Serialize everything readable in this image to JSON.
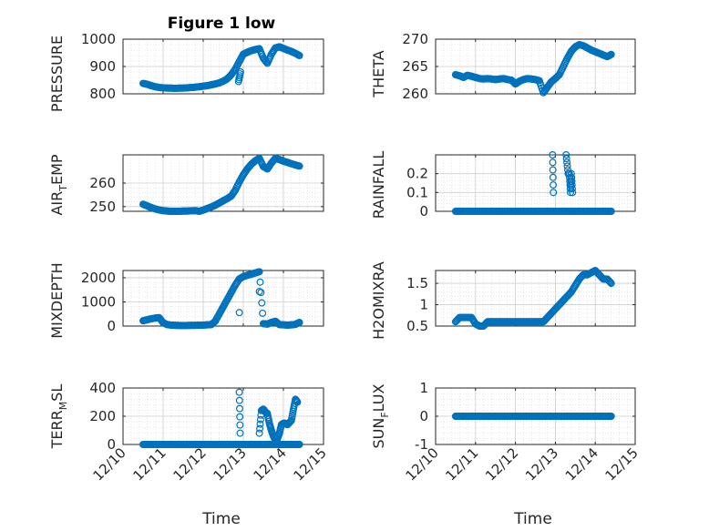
{
  "chart_data": [
    {
      "type": "scatter",
      "title": "Figure 1 low",
      "ylabel": "PRESSURE",
      "ylim": [
        800,
        1000
      ],
      "yticks": [
        800,
        900,
        1000
      ],
      "yticklabels": [
        "800",
        "900",
        "1000"
      ],
      "x": [
        10.5,
        10.6,
        10.7,
        10.8,
        10.9,
        11.0,
        11.1,
        11.2,
        11.3,
        11.4,
        11.5,
        11.6,
        11.7,
        11.8,
        11.9,
        12.0,
        12.1,
        12.2,
        12.3,
        12.4,
        12.5,
        12.6,
        12.7,
        12.8,
        12.9,
        13.0,
        13.1,
        13.2,
        13.3,
        13.4,
        13.5,
        13.6,
        13.7,
        13.8,
        13.9,
        14.0,
        14.1,
        14.2,
        14.3,
        14.4,
        12.88,
        12.93
      ],
      "y": [
        838,
        835,
        830,
        826,
        823,
        822,
        821,
        821,
        820,
        821,
        821,
        822,
        823,
        824,
        826,
        828,
        830,
        833,
        836,
        840,
        846,
        855,
        870,
        890,
        918,
        945,
        952,
        958,
        962,
        965,
        930,
        912,
        945,
        968,
        972,
        966,
        960,
        955,
        948,
        940,
        845,
        880
      ]
    },
    {
      "type": "scatter",
      "ylabel": "THETA",
      "ylim": [
        260,
        270
      ],
      "yticks": [
        260,
        265,
        270
      ],
      "yticklabels": [
        "260",
        "265",
        "270"
      ],
      "x": [
        10.5,
        10.6,
        10.7,
        10.8,
        10.9,
        11.0,
        11.1,
        11.2,
        11.3,
        11.4,
        11.5,
        11.6,
        11.7,
        11.8,
        11.9,
        12.0,
        12.1,
        12.2,
        12.3,
        12.4,
        12.5,
        12.6,
        12.7,
        12.8,
        12.9,
        13.0,
        13.1,
        13.2,
        13.3,
        13.4,
        13.5,
        13.6,
        13.7,
        13.8,
        13.9,
        14.0,
        14.1,
        14.2,
        14.3,
        14.4
      ],
      "y": [
        263.5,
        263.3,
        263.0,
        263.4,
        263.2,
        263.0,
        262.8,
        262.7,
        262.8,
        262.7,
        262.6,
        262.7,
        262.8,
        262.6,
        262.5,
        261.8,
        262.3,
        262.6,
        262.8,
        262.7,
        262.6,
        262.4,
        260.2,
        261.2,
        262.2,
        262.8,
        263.5,
        265.0,
        266.5,
        267.8,
        268.6,
        269.0,
        268.8,
        268.4,
        268.0,
        267.7,
        267.4,
        267.1,
        266.8,
        267.2
      ]
    },
    {
      "type": "scatter",
      "ylabel": "AIR_TEMP",
      "ylim": [
        248,
        272
      ],
      "yticks": [
        250,
        260
      ],
      "yticklabels": [
        "250",
        "260"
      ],
      "x": [
        10.5,
        10.6,
        10.7,
        10.8,
        10.9,
        11.0,
        11.1,
        11.2,
        11.3,
        11.4,
        11.5,
        11.6,
        11.7,
        11.8,
        11.9,
        12.0,
        12.1,
        12.2,
        12.3,
        12.4,
        12.5,
        12.6,
        12.7,
        12.8,
        12.9,
        13.0,
        13.1,
        13.2,
        13.3,
        13.4,
        13.5,
        13.6,
        13.7,
        13.8,
        13.9,
        14.0,
        14.1,
        14.2,
        14.3,
        14.4
      ],
      "y": [
        251.0,
        250.3,
        249.6,
        249.0,
        248.6,
        248.3,
        248.1,
        248.0,
        248.0,
        248.0,
        248.1,
        248.1,
        248.2,
        248.3,
        248.0,
        248.5,
        249.2,
        249.8,
        250.6,
        251.5,
        252.5,
        253.4,
        254.5,
        257.0,
        260.5,
        263.5,
        266.0,
        268.0,
        269.5,
        270.5,
        267.0,
        266.0,
        268.5,
        270.5,
        270.0,
        269.3,
        268.8,
        268.2,
        267.7,
        267.2
      ]
    },
    {
      "type": "scatter",
      "ylabel": "RAINFALL",
      "ylim": [
        0,
        0.3
      ],
      "yticks": [
        0,
        0.1,
        0.2
      ],
      "yticklabels": [
        "0",
        "0.1",
        "0.2"
      ],
      "x": [
        10.5,
        10.6,
        10.7,
        10.8,
        10.9,
        11.0,
        11.1,
        11.2,
        11.3,
        11.4,
        11.5,
        11.6,
        11.7,
        11.8,
        11.9,
        12.0,
        12.1,
        12.2,
        12.3,
        12.4,
        12.5,
        12.6,
        12.7,
        12.8,
        12.9,
        13.0,
        13.1,
        13.2,
        13.3,
        13.4,
        13.5,
        13.6,
        13.7,
        13.8,
        13.9,
        14.0,
        14.1,
        14.2,
        14.3,
        14.4,
        12.93,
        12.95,
        13.27,
        13.32,
        13.35,
        13.38,
        13.4,
        13.43
      ],
      "y": [
        0,
        0,
        0,
        0,
        0,
        0,
        0,
        0,
        0,
        0,
        0,
        0,
        0,
        0,
        0,
        0,
        0,
        0,
        0,
        0,
        0,
        0,
        0,
        0,
        0,
        0,
        0,
        0,
        0,
        0,
        0,
        0,
        0,
        0,
        0,
        0,
        0,
        0,
        0,
        0,
        0.3,
        0.1,
        0.3,
        0.2,
        0.2,
        0.1,
        0.2,
        0.1
      ]
    },
    {
      "type": "scatter",
      "ylabel": "MIXDEPTH",
      "ylim": [
        0,
        2300
      ],
      "yticks": [
        0,
        1000,
        2000
      ],
      "yticklabels": [
        "0",
        "1000",
        "2000"
      ],
      "x": [
        10.5,
        10.6,
        10.7,
        10.8,
        10.9,
        11.0,
        11.1,
        11.2,
        11.3,
        11.4,
        11.5,
        11.6,
        11.7,
        11.8,
        11.9,
        12.0,
        12.1,
        12.2,
        12.3,
        12.4,
        12.5,
        12.6,
        12.7,
        12.8,
        12.9,
        13.0,
        13.1,
        13.2,
        13.3,
        13.4,
        13.5,
        13.6,
        13.7,
        13.8,
        13.9,
        14.0,
        14.1,
        14.2,
        14.3,
        14.4,
        12.9,
        13.4
      ],
      "y": [
        220,
        260,
        300,
        330,
        350,
        140,
        60,
        40,
        30,
        25,
        25,
        25,
        30,
        30,
        35,
        40,
        50,
        60,
        200,
        500,
        800,
        1100,
        1400,
        1700,
        1950,
        2050,
        2100,
        2150,
        2200,
        2250,
        100,
        80,
        150,
        200,
        60,
        50,
        40,
        50,
        70,
        150,
        560,
        1430
      ]
    },
    {
      "type": "scatter",
      "ylabel": "H2OMIXRA",
      "ylim": [
        0.5,
        1.8
      ],
      "yticks": [
        0.5,
        1,
        1.5
      ],
      "yticklabels": [
        "0.5",
        "1",
        "1.5"
      ],
      "x": [
        10.5,
        10.6,
        10.7,
        10.8,
        10.9,
        11.0,
        11.1,
        11.2,
        11.3,
        11.4,
        11.5,
        11.6,
        11.7,
        11.8,
        11.9,
        12.0,
        12.1,
        12.2,
        12.3,
        12.4,
        12.5,
        12.6,
        12.7,
        12.8,
        12.9,
        13.0,
        13.1,
        13.2,
        13.3,
        13.4,
        13.5,
        13.6,
        13.7,
        13.8,
        13.9,
        14.0,
        14.1,
        14.2,
        14.3,
        14.4
      ],
      "y": [
        0.6,
        0.7,
        0.7,
        0.7,
        0.7,
        0.55,
        0.5,
        0.5,
        0.6,
        0.6,
        0.6,
        0.6,
        0.6,
        0.6,
        0.6,
        0.6,
        0.6,
        0.6,
        0.6,
        0.6,
        0.6,
        0.6,
        0.6,
        0.7,
        0.8,
        0.9,
        1.0,
        1.1,
        1.2,
        1.3,
        1.45,
        1.6,
        1.7,
        1.7,
        1.75,
        1.8,
        1.7,
        1.6,
        1.6,
        1.5
      ]
    },
    {
      "type": "scatter",
      "ylabel": "TERR_MSL",
      "ylim": [
        0,
        400
      ],
      "yticks": [
        0,
        200,
        400
      ],
      "yticklabels": [
        "0",
        "200",
        "400"
      ],
      "x": [
        10.5,
        10.6,
        10.7,
        10.8,
        10.9,
        11.0,
        11.1,
        11.2,
        11.3,
        11.4,
        11.5,
        11.6,
        11.7,
        11.8,
        11.9,
        12.0,
        12.1,
        12.2,
        12.3,
        12.4,
        12.5,
        12.6,
        12.7,
        12.8,
        12.9,
        13.0,
        13.1,
        13.2,
        13.3,
        13.4,
        13.5,
        13.6,
        13.7,
        13.8,
        13.9,
        14.0,
        14.1,
        14.2,
        14.3,
        14.4,
        12.9,
        12.92,
        13.4,
        13.45,
        13.5,
        13.55,
        13.6,
        13.65,
        13.7,
        13.75,
        13.8,
        13.85,
        13.9,
        13.95,
        14.0,
        14.05,
        14.1,
        14.2,
        14.25,
        14.3,
        14.35
      ],
      "y": [
        0,
        0,
        0,
        0,
        0,
        0,
        0,
        0,
        0,
        0,
        0,
        0,
        0,
        0,
        0,
        0,
        0,
        0,
        0,
        0,
        0,
        0,
        0,
        0,
        0,
        0,
        0,
        0,
        0,
        0,
        0,
        0,
        0,
        0,
        0,
        0,
        0,
        0,
        0,
        0,
        370,
        80,
        80,
        240,
        250,
        230,
        220,
        150,
        100,
        60,
        30,
        40,
        80,
        140,
        150,
        150,
        140,
        170,
        250,
        320,
        300
      ]
    },
    {
      "type": "scatter",
      "ylabel": "SUN_FLUX",
      "ylim": [
        -1,
        1
      ],
      "yticks": [
        -1,
        0,
        1
      ],
      "yticklabels": [
        "-1",
        "0",
        "1"
      ],
      "x": [
        10.5,
        10.6,
        10.7,
        10.8,
        10.9,
        11.0,
        11.1,
        11.2,
        11.3,
        11.4,
        11.5,
        11.6,
        11.7,
        11.8,
        11.9,
        12.0,
        12.1,
        12.2,
        12.3,
        12.4,
        12.5,
        12.6,
        12.7,
        12.8,
        12.9,
        13.0,
        13.1,
        13.2,
        13.3,
        13.4,
        13.5,
        13.6,
        13.7,
        13.8,
        13.9,
        14.0,
        14.1,
        14.2,
        14.3,
        14.4
      ],
      "y": [
        0,
        0,
        0,
        0,
        0,
        0,
        0,
        0,
        0,
        0,
        0,
        0,
        0,
        0,
        0,
        0,
        0,
        0,
        0,
        0,
        0,
        0,
        0,
        0,
        0,
        0,
        0,
        0,
        0,
        0,
        0,
        0,
        0,
        0,
        0,
        0,
        0,
        0,
        0,
        0
      ]
    }
  ],
  "xaxis": {
    "xlim": [
      10,
      15
    ],
    "xticks": [
      10,
      11,
      12,
      13,
      14,
      15
    ],
    "xticklabels": [
      "12/10",
      "12/11",
      "12/12",
      "12/13",
      "12/14",
      "12/15"
    ],
    "xlabel": "Time"
  },
  "ylabel_parts": {
    "air_temp": {
      "main": "AIR",
      "sub": "T",
      "rest": "EMP"
    },
    "terr_msl": {
      "main": "TERR",
      "sub": "M",
      "rest": "SL"
    },
    "sun_flux": {
      "main": "SUN",
      "sub": "F",
      "rest": "LUX"
    }
  },
  "colors": {
    "marker": "#0072BD",
    "axis": "#262626",
    "grid": "#d7d7d7"
  }
}
